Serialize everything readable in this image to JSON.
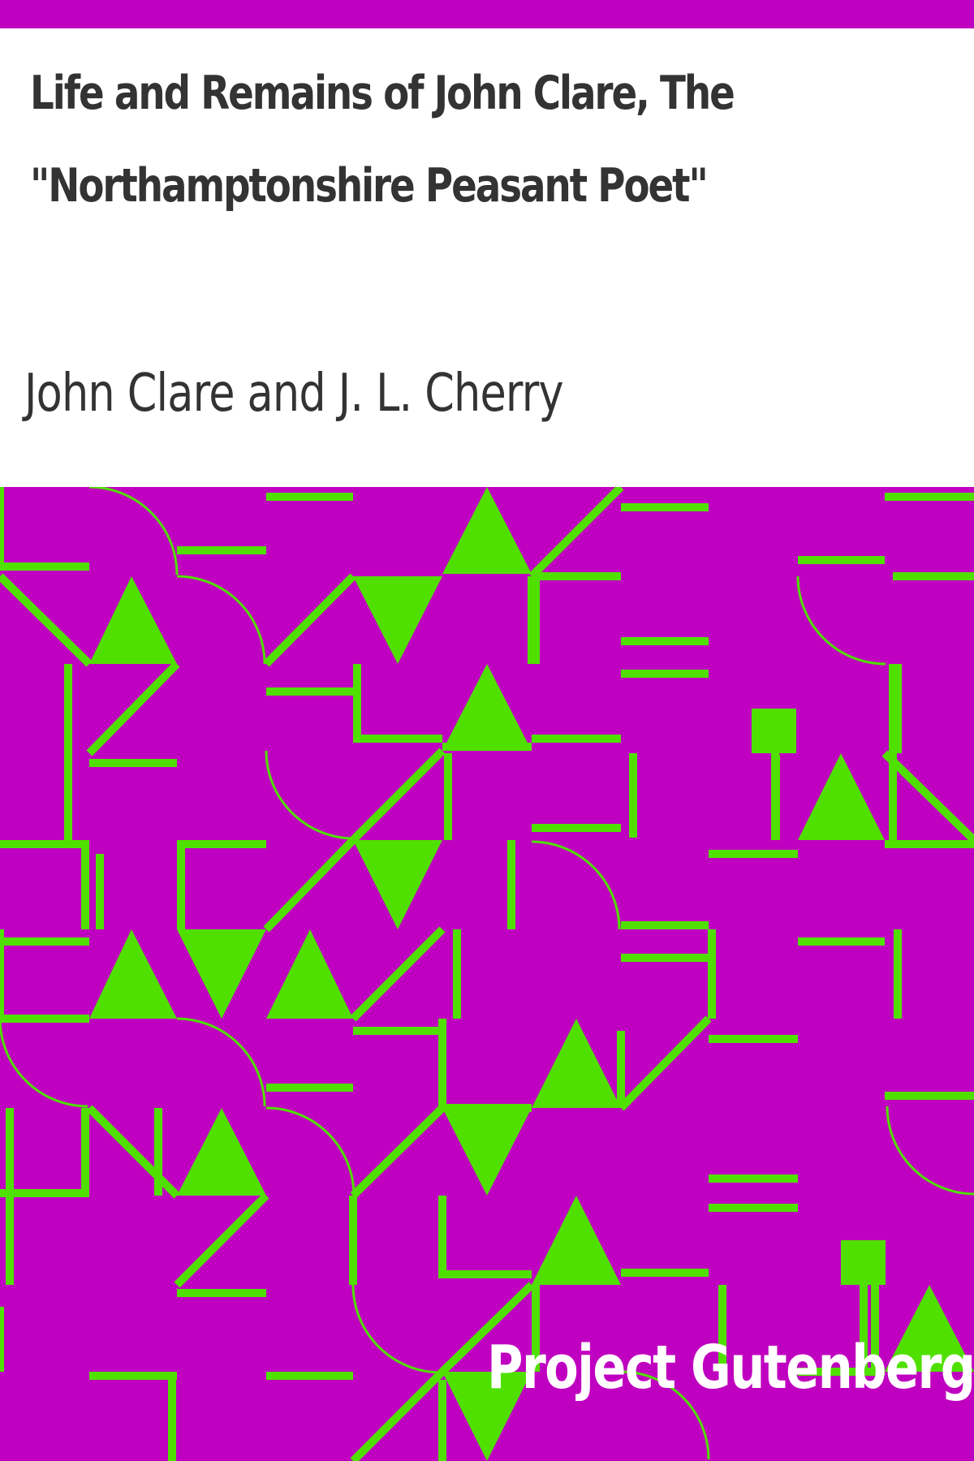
{
  "cover": {
    "title": "Life and Remains of John Clare, The \"Northamptonshire Peasant Poet\"",
    "author": "John Clare and J. L. Cherry",
    "publisher": "Project Gutenberg"
  },
  "colors": {
    "background": "#c000c0",
    "pattern": "#50e000",
    "header_background": "#ffffff",
    "text": "#333333",
    "publisher_text": "#ffffff"
  }
}
